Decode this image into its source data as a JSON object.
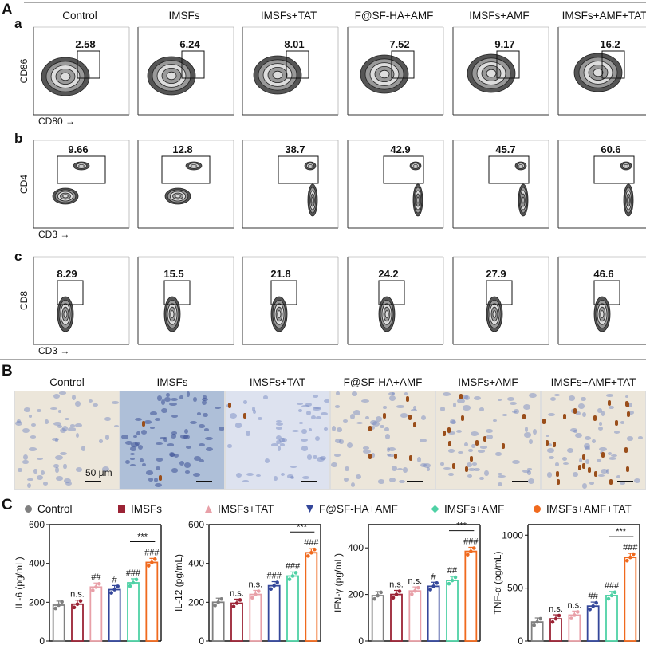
{
  "panels": {
    "A": "A",
    "B": "B",
    "C": "C"
  },
  "rows": {
    "a": "a",
    "b": "b",
    "c": "c"
  },
  "groups": [
    "Control",
    "IMSFs",
    "IMSFs+TAT",
    "F@SF-HA+AMF",
    "IMSFs+AMF",
    "IMSFs+AMF+TAT"
  ],
  "flow": {
    "a": {
      "xlabel": "CD80",
      "ylabel": "CD86",
      "values": [
        "2.58",
        "6.24",
        "8.01",
        "7.52",
        "9.17",
        "16.2"
      ]
    },
    "b": {
      "xlabel": "CD3",
      "ylabel": "CD4",
      "values": [
        "9.66",
        "12.8",
        "38.7",
        "42.9",
        "45.7",
        "60.6"
      ]
    },
    "c": {
      "xlabel": "CD3",
      "ylabel": "CD8",
      "values": [
        "8.29",
        "15.5",
        "21.8",
        "24.2",
        "27.9",
        "46.6"
      ]
    }
  },
  "histology": {
    "scale_label": "50 μm"
  },
  "legend": [
    {
      "name": "Control",
      "color": "#808080",
      "marker": "circle"
    },
    {
      "name": "IMSFs",
      "color": "#9b2335",
      "marker": "square"
    },
    {
      "name": "IMSFs+TAT",
      "color": "#e8a0a8",
      "marker": "triangle-up"
    },
    {
      "name": "F@SF-HA+AMF",
      "color": "#34479a",
      "marker": "triangle-down"
    },
    {
      "name": "IMSFs+AMF",
      "color": "#4fd1a5",
      "marker": "diamond"
    },
    {
      "name": "IMSFs+AMF+TAT",
      "color": "#f06a1e",
      "marker": "hexagon"
    }
  ],
  "chart_data": [
    {
      "type": "bar",
      "ylabel": "IL-6 (pg/mL)",
      "ylim": [
        0,
        600
      ],
      "yticks": [
        0,
        200,
        400,
        600
      ],
      "categories": [
        "Control",
        "IMSFs",
        "IMSFs+TAT",
        "F@SF-HA+AMF",
        "IMSFs+AMF",
        "IMSFs+AMF+TAT"
      ],
      "values": [
        185,
        190,
        278,
        265,
        300,
        405
      ],
      "annotations": [
        "",
        "n.s.",
        "##",
        "#",
        "###",
        "###"
      ],
      "comparison": "***"
    },
    {
      "type": "bar",
      "ylabel": "IL-12 (pg/mL)",
      "ylim": [
        0,
        600
      ],
      "yticks": [
        0,
        200,
        400,
        600
      ],
      "categories": [
        "Control",
        "IMSFs",
        "IMSFs+TAT",
        "F@SF-HA+AMF",
        "IMSFs+AMF",
        "IMSFs+AMF+TAT"
      ],
      "values": [
        200,
        195,
        240,
        285,
        335,
        455
      ],
      "annotations": [
        "",
        "n.s.",
        "n.s.",
        "###",
        "###",
        "###"
      ],
      "comparison": "***"
    },
    {
      "type": "bar",
      "ylabel": "IFN-γ (pg/mL)",
      "ylim": [
        0,
        500
      ],
      "yticks": [
        0,
        200,
        400
      ],
      "categories": [
        "Control",
        "IMSFs",
        "IMSFs+TAT",
        "F@SF-HA+AMF",
        "IMSFs+AMF",
        "IMSFs+AMF+TAT"
      ],
      "values": [
        195,
        200,
        215,
        235,
        260,
        385
      ],
      "annotations": [
        "",
        "n.s.",
        "n.s.",
        "#",
        "##",
        "###"
      ],
      "comparison": "***"
    },
    {
      "type": "bar",
      "ylabel": "TNF-α (pg/mL)",
      "ylim": [
        0,
        1100
      ],
      "yticks": [
        0,
        500,
        1000
      ],
      "categories": [
        "Control",
        "IMSFs",
        "IMSFs+TAT",
        "F@SF-HA+AMF",
        "IMSFs+AMF",
        "IMSFs+AMF+TAT"
      ],
      "values": [
        180,
        210,
        245,
        330,
        430,
        790
      ],
      "annotations": [
        "",
        "n.s.",
        "n.s.",
        "##",
        "###",
        "###"
      ],
      "comparison": "***"
    }
  ]
}
